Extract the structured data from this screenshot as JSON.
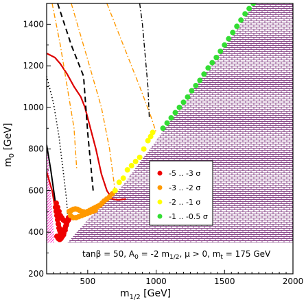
{
  "chart_data": {
    "type": "scatter",
    "x_axis": {
      "label_main": "m",
      "label_sub": "1/2",
      "label_unit": " [GeV]",
      "range": [
        200,
        2000
      ],
      "ticks": [
        500,
        1000,
        1500,
        2000
      ],
      "tick_labels": [
        "500",
        "1000",
        "1500",
        "2000"
      ]
    },
    "y_axis": {
      "label_main": "m",
      "label_sub": "0",
      "label_unit": " [GeV]",
      "range": [
        200,
        1500
      ],
      "ticks": [
        200,
        400,
        600,
        800,
        1000,
        1200,
        1400
      ],
      "tick_labels": [
        "200",
        "400",
        "600",
        "800",
        "1000",
        "1200",
        "1400"
      ]
    },
    "annotation": {
      "parts": [
        "tanβ = 50, A",
        "0",
        " = -2 m",
        "1/2",
        ", μ > 0, m",
        "t",
        " = 175 GeV"
      ]
    },
    "legend": {
      "placement": "center-right",
      "entries": [
        {
          "label": "-5 .. -3 σ",
          "color": "#ee0000"
        },
        {
          "label": "-3 .. -2 σ",
          "color": "#ff9900"
        },
        {
          "label": "-2 .. -1 σ",
          "color": "#ffff00"
        },
        {
          "label": "-1 .. -0.5 σ",
          "color": "#33dd33"
        }
      ]
    },
    "excluded_region": {
      "boundary": [
        [
          200,
          235
        ],
        [
          500,
          460
        ],
        [
          750,
          620
        ],
        [
          1000,
          840
        ],
        [
          1250,
          1070
        ],
        [
          1500,
          1290
        ],
        [
          1720,
          1500
        ]
      ],
      "color": "#8b4a8b"
    },
    "lep_band": {
      "x": [
        200,
        2000
      ],
      "y": [
        200,
        350
      ]
    },
    "left_region": {
      "x_max": 255,
      "y": [
        220,
        850
      ],
      "color": "#ff33cc"
    },
    "series": [
      {
        "color": "#ee0000",
        "x": [
          265,
          270,
          275,
          280,
          285,
          290,
          295,
          300,
          305,
          310,
          315,
          320,
          325,
          330,
          335,
          340,
          345,
          350,
          355,
          360,
          270,
          280,
          290,
          300,
          310,
          320,
          330,
          340,
          350,
          360,
          275,
          285,
          295,
          305,
          315,
          325,
          335
        ],
        "y": [
          520,
          500,
          480,
          460,
          440,
          420,
          410,
          400,
          395,
          395,
          400,
          405,
          410,
          415,
          420,
          430,
          440,
          450,
          460,
          470,
          540,
          520,
          500,
          480,
          470,
          460,
          455,
          450,
          455,
          460,
          380,
          370,
          365,
          370,
          380,
          395,
          410
        ]
      },
      {
        "color": "#ff9900",
        "x": [
          365,
          380,
          395,
          410,
          425,
          440,
          455,
          470,
          485,
          500,
          515,
          530,
          545,
          560,
          575,
          590,
          605,
          620,
          640,
          660,
          680,
          375,
          395,
          415,
          435,
          455,
          475,
          495,
          515,
          535,
          555
        ],
        "y": [
          500,
          505,
          510,
          512,
          510,
          505,
          500,
          498,
          495,
          500,
          505,
          510,
          515,
          520,
          525,
          530,
          540,
          550,
          560,
          570,
          585,
          480,
          470,
          470,
          475,
          480,
          485,
          490,
          495,
          500,
          505
        ]
      },
      {
        "color": "#ffff00",
        "x": [
          700,
          730,
          760,
          790,
          820,
          850,
          880,
          910,
          940,
          960,
          975
        ],
        "y": [
          600,
          640,
          660,
          700,
          720,
          740,
          760,
          800,
          840,
          860,
          880
        ]
      },
      {
        "color": "#33dd33",
        "x": [
          1050,
          1080,
          1110,
          1140,
          1170,
          1200,
          1230,
          1260,
          1290,
          1320,
          1350,
          1380,
          1410,
          1440,
          1470,
          1500,
          1530,
          1560,
          1590,
          1620,
          1650,
          1680,
          1710
        ],
        "y": [
          900,
          925,
          950,
          975,
          1000,
          1025,
          1050,
          1080,
          1105,
          1130,
          1160,
          1190,
          1215,
          1240,
          1270,
          1300,
          1330,
          1360,
          1390,
          1420,
          1450,
          1475,
          1500
        ]
      }
    ],
    "contours": [
      {
        "style": "solid",
        "color": "#dd0000",
        "width": 2.2,
        "points": [
          [
            200,
            1260
          ],
          [
            260,
            1240
          ],
          [
            300,
            1210
          ],
          [
            350,
            1160
          ],
          [
            400,
            1100
          ],
          [
            450,
            1050
          ],
          [
            480,
            1000
          ],
          [
            520,
            900
          ],
          [
            560,
            800
          ],
          [
            600,
            680
          ],
          [
            640,
            600
          ],
          [
            680,
            560
          ],
          [
            720,
            555
          ],
          [
            780,
            560
          ]
        ]
      },
      {
        "style": "solid",
        "color": "#dd0000",
        "width": 2.2,
        "points": [
          [
            200,
            690
          ],
          [
            240,
            600
          ],
          [
            260,
            520
          ],
          [
            280,
            470
          ],
          [
            300,
            430
          ],
          [
            320,
            400
          ],
          [
            340,
            380
          ]
        ]
      },
      {
        "style": "solid",
        "color": "#000000",
        "width": 2,
        "points": [
          [
            200,
            820
          ],
          [
            230,
            700
          ],
          [
            260,
            560
          ],
          [
            280,
            440
          ],
          [
            300,
            380
          ]
        ]
      },
      {
        "style": "dashed",
        "color": "#000000",
        "width": 2,
        "points": [
          [
            280,
            1500
          ],
          [
            380,
            1300
          ],
          [
            470,
            1150
          ],
          [
            500,
            880
          ],
          [
            540,
            600
          ]
        ]
      },
      {
        "style": "dashdot",
        "color": "#ff9900",
        "width": 1.4,
        "points": [
          [
            240,
            1500
          ],
          [
            300,
            1300
          ],
          [
            350,
            1100
          ],
          [
            400,
            900
          ],
          [
            420,
            700
          ]
        ]
      },
      {
        "style": "dashdot",
        "color": "#ff9900",
        "width": 1.4,
        "points": [
          [
            380,
            1500
          ],
          [
            500,
            1230
          ],
          [
            600,
            1000
          ],
          [
            660,
            800
          ],
          [
            700,
            600
          ]
        ]
      },
      {
        "style": "dashdot",
        "color": "#ff9900",
        "width": 1.4,
        "points": [
          [
            640,
            1500
          ],
          [
            760,
            1300
          ],
          [
            880,
            1100
          ],
          [
            960,
            960
          ],
          [
            1000,
            880
          ]
        ]
      },
      {
        "style": "dotted",
        "color": "#000000",
        "width": 1.6,
        "points": [
          [
            200,
            1150
          ],
          [
            250,
            1020
          ],
          [
            290,
            860
          ],
          [
            320,
            700
          ],
          [
            345,
            560
          ],
          [
            360,
            420
          ]
        ]
      },
      {
        "style": "dashdot",
        "color": "#000000",
        "width": 1.4,
        "points": [
          [
            880,
            1500
          ],
          [
            900,
            1400
          ],
          [
            920,
            1250
          ],
          [
            940,
            1100
          ],
          [
            950,
            950
          ]
        ]
      }
    ]
  }
}
